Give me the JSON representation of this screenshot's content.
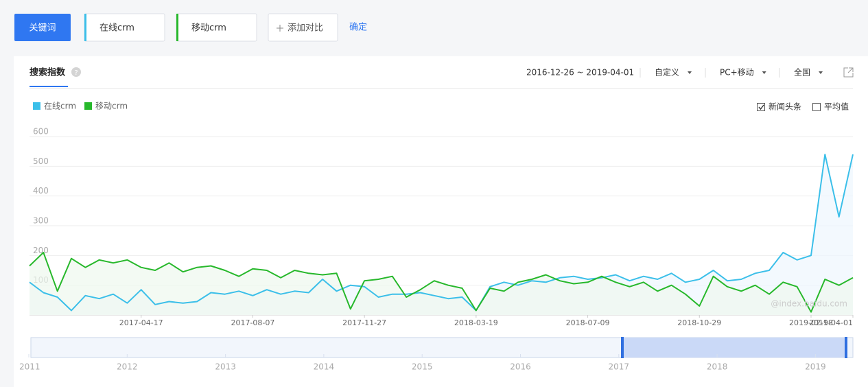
{
  "toolbar": {
    "keyword_button": "关键词",
    "keywords": [
      "在线crm",
      "移动crm"
    ],
    "add_compare": "添加对比",
    "confirm": "确定"
  },
  "panel": {
    "tab": "搜索指数",
    "date_range": "2016-12-26 ~ 2019-04-01",
    "filters": [
      "自定义",
      "PC+移动",
      "全国"
    ],
    "checkboxes": [
      {
        "label": "新闻头条",
        "checked": true
      },
      {
        "label": "平均值",
        "checked": false
      }
    ],
    "watermark": "@index.baidu.com"
  },
  "chart_data": {
    "type": "line",
    "x": [
      "2016-12-26",
      "2017-01-09",
      "2017-01-23",
      "2017-02-06",
      "2017-02-20",
      "2017-03-06",
      "2017-03-20",
      "2017-04-03",
      "2017-04-17",
      "2017-05-01",
      "2017-05-15",
      "2017-05-29",
      "2017-06-12",
      "2017-06-26",
      "2017-07-10",
      "2017-07-24",
      "2017-08-07",
      "2017-08-21",
      "2017-09-04",
      "2017-09-18",
      "2017-10-02",
      "2017-10-16",
      "2017-10-30",
      "2017-11-13",
      "2017-11-27",
      "2017-12-11",
      "2017-12-25",
      "2018-01-08",
      "2018-01-22",
      "2018-02-05",
      "2018-02-19",
      "2018-03-05",
      "2018-03-19",
      "2018-04-02",
      "2018-04-16",
      "2018-04-30",
      "2018-05-14",
      "2018-05-28",
      "2018-06-11",
      "2018-06-25",
      "2018-07-09",
      "2018-07-23",
      "2018-08-06",
      "2018-08-20",
      "2018-09-03",
      "2018-09-17",
      "2018-10-01",
      "2018-10-15",
      "2018-10-29",
      "2018-11-12",
      "2018-11-26",
      "2018-12-10",
      "2018-12-24",
      "2019-01-07",
      "2019-01-21",
      "2019-02-04",
      "2019-02-18",
      "2019-03-04",
      "2019-03-18",
      "2019-04-01"
    ],
    "series": [
      {
        "name": "在线crm",
        "color": "#3bbfe9",
        "fill": "#eef7fd",
        "values": [
          110,
          75,
          60,
          15,
          65,
          55,
          70,
          40,
          85,
          35,
          45,
          40,
          45,
          75,
          70,
          80,
          65,
          85,
          70,
          80,
          75,
          120,
          80,
          100,
          95,
          60,
          70,
          70,
          75,
          65,
          55,
          60,
          15,
          95,
          110,
          100,
          115,
          110,
          125,
          130,
          120,
          125,
          135,
          115,
          130,
          120,
          140,
          110,
          120,
          150,
          115,
          120,
          140,
          150,
          210,
          185,
          200,
          540,
          330,
          540
        ]
      },
      {
        "name": "移动crm",
        "color": "#27b82b",
        "fill": "#eef8ee",
        "values": [
          165,
          210,
          80,
          190,
          160,
          185,
          175,
          185,
          160,
          150,
          175,
          145,
          160,
          165,
          150,
          130,
          155,
          150,
          125,
          150,
          140,
          135,
          140,
          20,
          115,
          120,
          130,
          60,
          85,
          115,
          100,
          90,
          15,
          90,
          80,
          110,
          120,
          135,
          115,
          105,
          110,
          130,
          110,
          95,
          110,
          80,
          100,
          70,
          30,
          130,
          95,
          80,
          100,
          70,
          110,
          95,
          10,
          120,
          100,
          125
        ]
      }
    ],
    "xticks": [
      "2017-04-17",
      "2017-08-07",
      "2017-11-27",
      "2018-03-19",
      "2018-07-09",
      "2018-10-29",
      "2019-02-18",
      "2019-04-01"
    ],
    "ylim": [
      0,
      600
    ],
    "yticks": [
      100,
      200,
      300,
      400,
      500,
      600
    ],
    "grid": true
  },
  "overview": {
    "years": [
      "2011",
      "2012",
      "2013",
      "2014",
      "2015",
      "2016",
      "2017",
      "2018",
      "2019"
    ]
  }
}
